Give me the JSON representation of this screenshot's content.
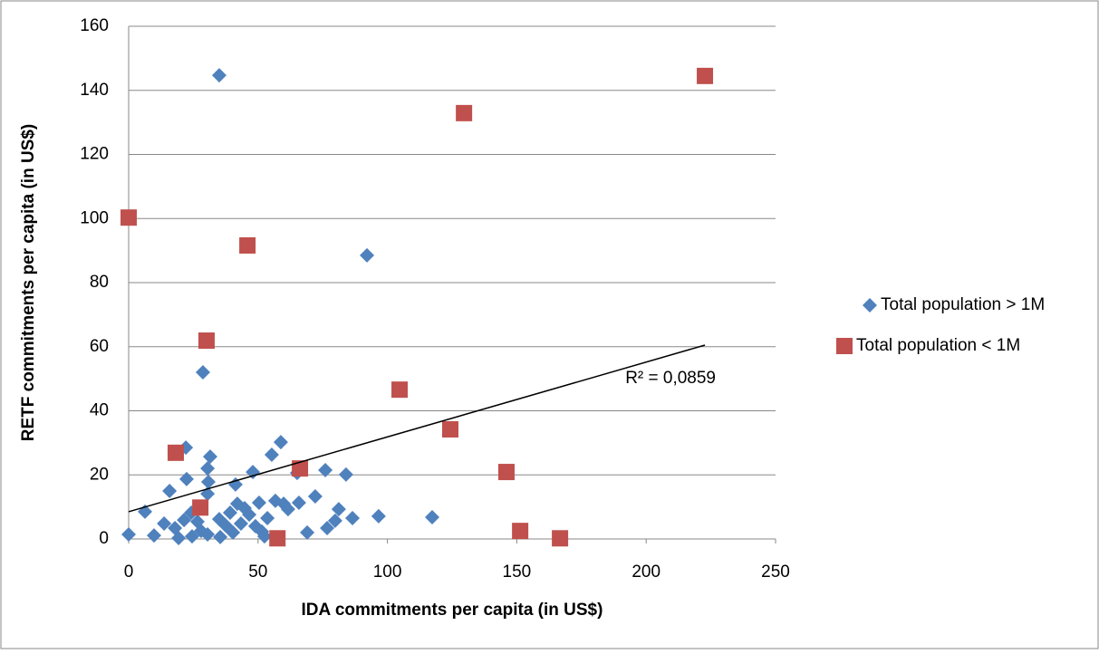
{
  "chart_data": {
    "type": "scatter",
    "xlabel": "IDA commitments per capita (in US$)",
    "ylabel": "RETF commitments per capita (in US$)",
    "xlim": [
      0,
      250
    ],
    "xticks": [
      0,
      50,
      100,
      150,
      200,
      250
    ],
    "ylim": [
      0,
      160
    ],
    "yticks": [
      0,
      20,
      40,
      60,
      80,
      100,
      120,
      140,
      160
    ],
    "grid": true,
    "legend": "right",
    "series": [
      {
        "name": "Total population > 1M",
        "color": "#4f81bd",
        "marker": "diamond",
        "x": [
          0,
          6.3,
          9.8,
          13.7,
          15.8,
          17.9,
          19.3,
          21.4,
          22.1,
          22.4,
          24.2,
          24.5,
          26.6,
          28,
          28.7,
          30.5,
          30.8,
          31.5,
          30.5,
          30.5,
          35,
          35,
          35.4,
          37.5,
          39.2,
          40.3,
          41.3,
          42,
          43.4,
          44.8,
          46.6,
          48,
          49,
          50.4,
          51.5,
          52.5,
          53.6,
          55.3,
          56.7,
          58.8,
          59.9,
          61.6,
          65.1,
          65.8,
          69,
          72.1,
          76,
          76.7,
          79.8,
          81.2,
          84,
          86.5,
          92.1,
          96.6,
          117.3
        ],
        "values": [
          1.4,
          8.5,
          1.1,
          4.8,
          15,
          3.4,
          0.3,
          5.9,
          28.5,
          18.7,
          8.2,
          0.8,
          5.4,
          2.5,
          52,
          22,
          17.8,
          25.7,
          14.1,
          1.4,
          144.7,
          6.2,
          0.6,
          4.2,
          8.2,
          2,
          17,
          11,
          4.8,
          9.6,
          7.6,
          20.9,
          4,
          11.3,
          2.3,
          0.8,
          6.5,
          26.3,
          11.9,
          30.2,
          11,
          9.3,
          20.6,
          11.3,
          2,
          13.3,
          21.5,
          3.4,
          5.7,
          9.3,
          20.1,
          6.5,
          88.5,
          7.1,
          6.8
        ]
      },
      {
        "name": "Total population < 1M",
        "color": "#c0504d",
        "marker": "square",
        "x": [
          0,
          18.2,
          45.9,
          30.1,
          27.7,
          66.2,
          57.5,
          104.7,
          124.3,
          129.6,
          146,
          151.3,
          166.7,
          222.7
        ],
        "values": [
          100.3,
          26.9,
          91.6,
          61.9,
          9.8,
          22,
          0.2,
          46.6,
          34.2,
          132.9,
          20.9,
          2.5,
          0.2,
          144.5
        ]
      }
    ],
    "trendline": {
      "x": [
        0,
        222.7
      ],
      "y": [
        8.5,
        60.5
      ],
      "label": "R² = 0,0859",
      "color": "#000000"
    }
  }
}
